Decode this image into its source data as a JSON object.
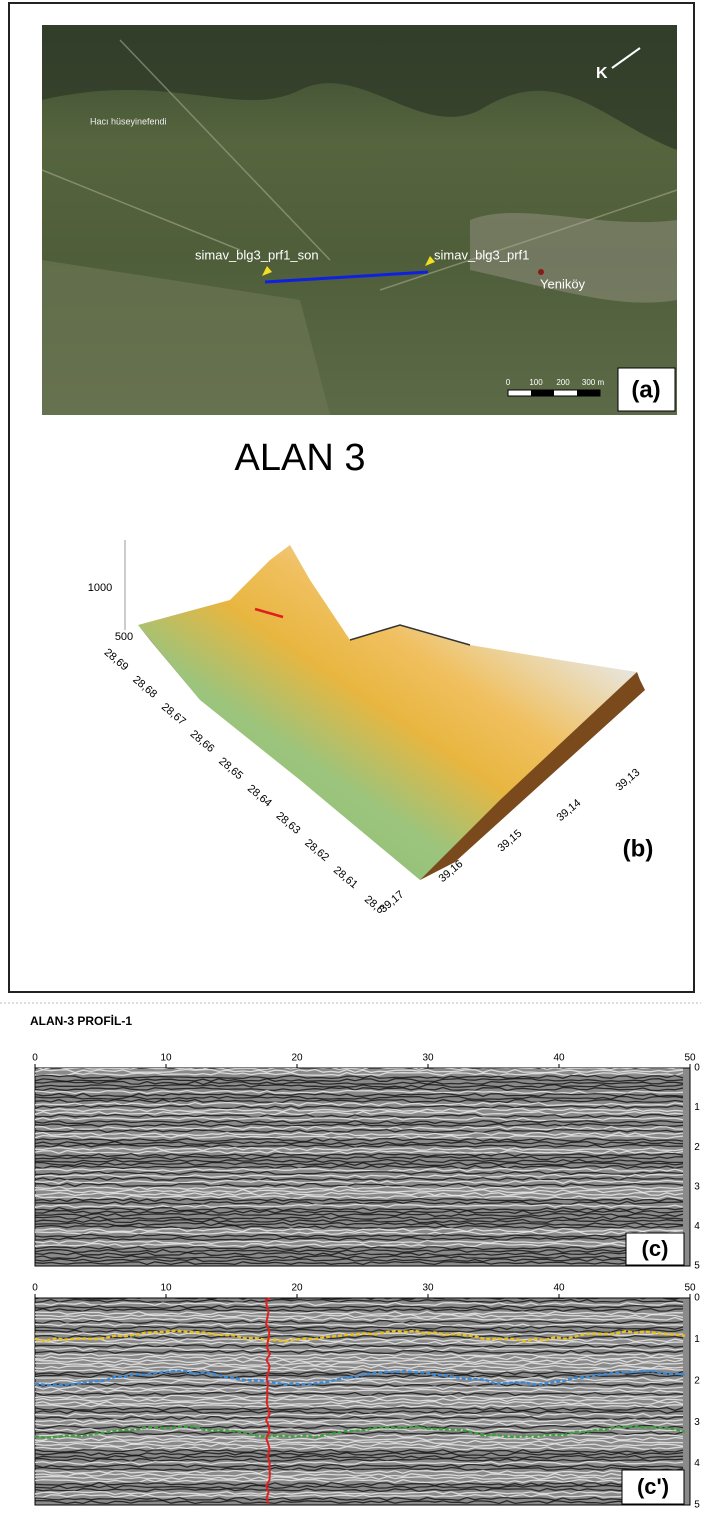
{
  "panel_a": {
    "places": [
      "Hacı hüseyinefendi",
      "simav_blg3_prf1_son",
      "simav_blg3_prf1",
      "Yeniköy"
    ],
    "north": "K",
    "scale_labels": [
      "0",
      "100",
      "200",
      "300 m"
    ],
    "label": "(a)"
  },
  "panel_b": {
    "title": "ALAN 3",
    "z_ticks": [
      "1000",
      "500"
    ],
    "lon_ticks": [
      "28,69",
      "28,68",
      "28,67",
      "28,66",
      "28,65",
      "28,64",
      "28,63",
      "28,62",
      "28,61",
      "28,6"
    ],
    "lat_ticks": [
      "39,17",
      "39,16",
      "39,15",
      "39,14",
      "39,13"
    ],
    "label": "(b)"
  },
  "profile": {
    "title": "ALAN-3 PROFİL-1",
    "distance_ticks": [
      "0",
      "10",
      "20",
      "30",
      "40",
      "50"
    ],
    "depth_ticks": [
      "0",
      "1",
      "2",
      "3",
      "4",
      "5"
    ],
    "label_c": "(c)",
    "label_c2": "(c')"
  }
}
